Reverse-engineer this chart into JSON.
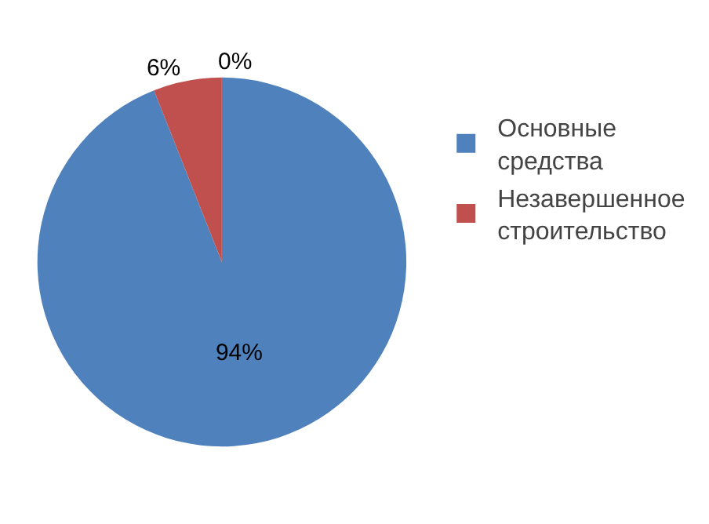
{
  "chart_data": {
    "type": "pie",
    "categories": [
      "Основные средства",
      "Незавершенное строительство"
    ],
    "values": [
      94,
      6
    ],
    "colors": [
      "#4f81bd",
      "#c0504d"
    ],
    "value_labels": [
      "94%",
      "6%"
    ],
    "annotations": [
      "0%"
    ],
    "legend": "right"
  }
}
